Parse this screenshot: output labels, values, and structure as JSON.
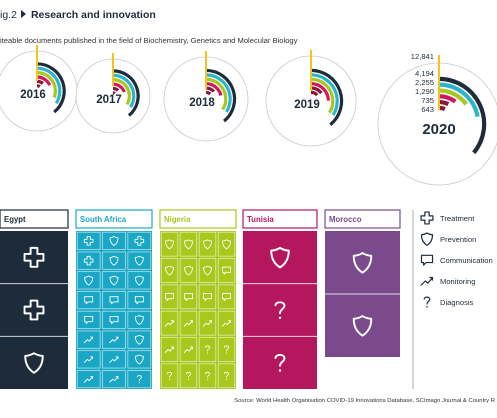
{
  "title": {
    "figure_label": "ig.2",
    "name": "Research and innovation"
  },
  "subtitle": "iteable documents published in the field of Biochemistry, Genetics and Molecular Biology",
  "source": "Source: World Health Organisation COVID-19 Innovations Database, SCImago Journal & Country R",
  "colors": {
    "navy": "#1d2b3a",
    "yellow": "#f3c516",
    "cyan": "#2bb5cc",
    "green": "#a8c81e",
    "pink": "#d2175f",
    "maroon": "#8a1838",
    "egypt": "#1d2b3a",
    "south_africa": "#1aa7c5",
    "nigeria": "#a8c81e",
    "tunisia": "#b5175f",
    "morocco": "#7a4a8c"
  },
  "chart_data": [
    {
      "type": "radial-bar",
      "series_values_2020": [
        12841,
        4194,
        2255,
        1290,
        735,
        643
      ],
      "value_labels_2020": [
        "12,841",
        "4,194",
        "2,255",
        "1,290",
        "735",
        "643"
      ],
      "years": [
        {
          "year": "2016",
          "values": [
            3000,
            2000,
            1100,
            650,
            380,
            330
          ]
        },
        {
          "year": "2017",
          "values": [
            3300,
            2200,
            1200,
            700,
            420,
            360
          ]
        },
        {
          "year": "2018",
          "values": [
            3600,
            2400,
            1320,
            760,
            460,
            400
          ]
        },
        {
          "year": "2019",
          "values": [
            4200,
            2800,
            1500,
            880,
            520,
            460
          ]
        },
        {
          "year": "2020",
          "values": [
            12841,
            4194,
            2255,
            1290,
            735,
            643
          ]
        }
      ]
    },
    {
      "type": "table",
      "countries": [
        {
          "name": "Egypt",
          "key": "egypt",
          "cols": 1,
          "cells": [
            [
              "treatment"
            ],
            [
              "treatment"
            ],
            [
              "prevention"
            ]
          ]
        },
        {
          "name": "South Africa",
          "key": "south_africa",
          "cols": 3,
          "cells": [
            [
              "treatment",
              "prevention",
              "treatment"
            ],
            [
              "treatment",
              "prevention",
              "prevention"
            ],
            [
              "prevention",
              "prevention",
              "prevention"
            ],
            [
              "communication",
              "communication",
              "communication"
            ],
            [
              "communication",
              "communication",
              "prevention"
            ],
            [
              "monitoring",
              "monitoring",
              "prevention"
            ],
            [
              "monitoring",
              "monitoring",
              "prevention"
            ],
            [
              "monitoring",
              "monitoring",
              "diagnosis"
            ]
          ]
        },
        {
          "name": "Nigeria",
          "key": "nigeria",
          "cols": 4,
          "cells": [
            [
              "prevention",
              "prevention",
              "prevention",
              "prevention"
            ],
            [
              "prevention",
              "prevention",
              "prevention",
              "communication"
            ],
            [
              "communication",
              "communication",
              "communication",
              "communication"
            ],
            [
              "monitoring",
              "monitoring",
              "monitoring",
              "monitoring"
            ],
            [
              "monitoring",
              "monitoring",
              "diagnosis",
              "diagnosis"
            ],
            [
              "diagnosis",
              "diagnosis",
              "diagnosis",
              "diagnosis"
            ]
          ]
        },
        {
          "name": "Tunisia",
          "key": "tunisia",
          "cols": 1,
          "cells": [
            [
              "prevention"
            ],
            [
              "diagnosis"
            ],
            [
              "diagnosis"
            ]
          ]
        },
        {
          "name": "Morocco",
          "key": "morocco",
          "cols": 1,
          "cells": [
            [
              "prevention"
            ],
            [
              "prevention"
            ]
          ]
        }
      ]
    }
  ],
  "legend": [
    {
      "key": "treatment",
      "label": "Treatment",
      "icon": "cross-icon"
    },
    {
      "key": "prevention",
      "label": "Prevention",
      "icon": "shield-icon"
    },
    {
      "key": "communication",
      "label": "Communication",
      "icon": "speech-bubble-icon"
    },
    {
      "key": "monitoring",
      "label": "Monitoring",
      "icon": "trend-line-icon"
    },
    {
      "key": "diagnosis",
      "label": "Diagnosis",
      "icon": "question-mark-icon"
    }
  ]
}
